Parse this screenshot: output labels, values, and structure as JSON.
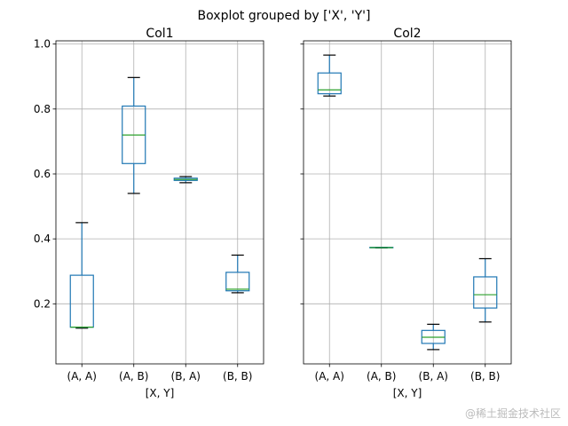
{
  "chart_data": [
    {
      "type": "box",
      "suptitle": "Boxplot grouped by ['X', 'Y']",
      "title": "Col1",
      "xlabel": "[X, Y]",
      "ylabel": "",
      "categories": [
        "(A, A)",
        "(A, B)",
        "(B, A)",
        "(B, B)"
      ],
      "yticks": [
        "0.2",
        "0.4",
        "0.6",
        "0.8",
        "1.0"
      ],
      "ylim": [
        0.015,
        1.01
      ],
      "grid": true,
      "boxes": [
        {
          "whislo": 0.125,
          "q1": 0.128,
          "med": 0.128,
          "q3": 0.288,
          "whishi": 0.45
        },
        {
          "whislo": 0.54,
          "q1": 0.632,
          "med": 0.72,
          "q3": 0.809,
          "whishi": 0.897
        },
        {
          "whislo": 0.573,
          "q1": 0.58,
          "med": 0.583,
          "q3": 0.587,
          "whishi": 0.592
        },
        {
          "whislo": 0.234,
          "q1": 0.24,
          "med": 0.245,
          "q3": 0.297,
          "whishi": 0.35
        }
      ]
    },
    {
      "type": "box",
      "title": "Col2",
      "xlabel": "[X, Y]",
      "ylabel": "",
      "categories": [
        "(A, A)",
        "(A, B)",
        "(B, A)",
        "(B, B)"
      ],
      "ylim": [
        0.015,
        1.01
      ],
      "grid": true,
      "boxes": [
        {
          "whislo": 0.84,
          "q1": 0.847,
          "med": 0.859,
          "q3": 0.911,
          "whishi": 0.966
        },
        {
          "whislo": 0.372,
          "q1": 0.373,
          "med": 0.373,
          "q3": 0.374,
          "whishi": 0.374
        },
        {
          "whislo": 0.059,
          "q1": 0.078,
          "med": 0.097,
          "q3": 0.118,
          "whishi": 0.137
        },
        {
          "whislo": 0.144,
          "q1": 0.187,
          "med": 0.228,
          "q3": 0.283,
          "whishi": 0.339
        }
      ]
    }
  ],
  "colors": {
    "box": "#1f77b4",
    "median": "#2ca02c",
    "caps": "#000000",
    "grid": "#b0b0b0"
  },
  "watermark": "@稀土掘金技术社区"
}
